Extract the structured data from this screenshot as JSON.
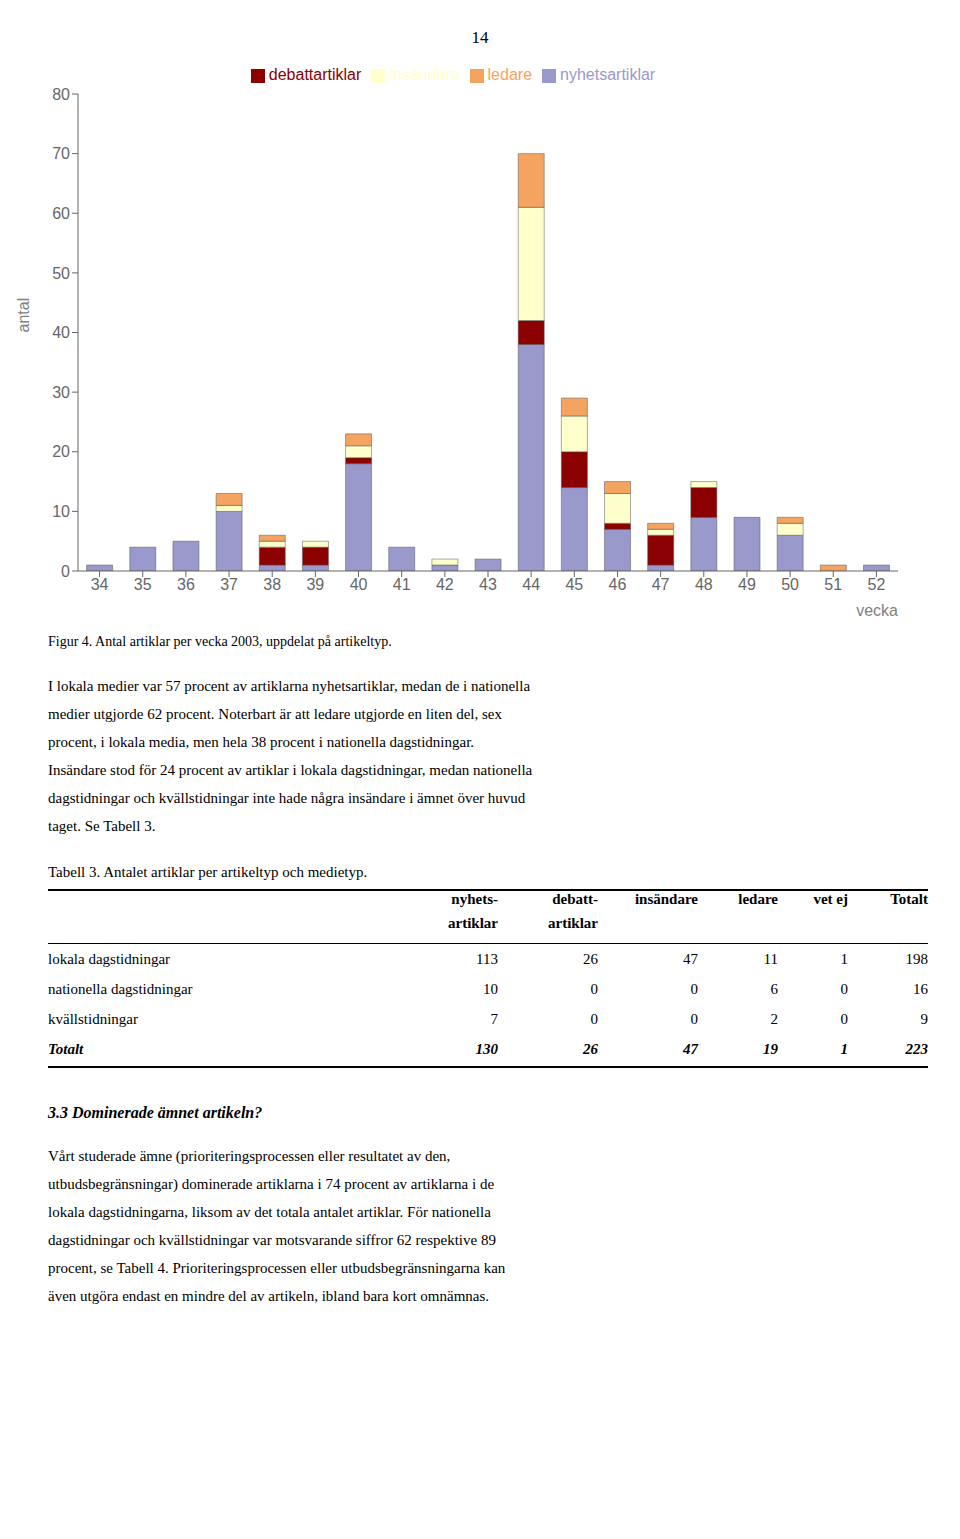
{
  "chart_data": {
    "type": "bar",
    "stacked": true,
    "grid": false,
    "legend": "top",
    "x_label": "vecka",
    "y_label": "antal",
    "categories": [
      "34",
      "35",
      "36",
      "37",
      "38",
      "39",
      "40",
      "41",
      "42",
      "43",
      "44",
      "45",
      "46",
      "47",
      "48",
      "49",
      "50",
      "51",
      "52"
    ],
    "series": [
      {
        "name": "nyhetsartiklar",
        "color": "#9999cc",
        "values": [
          1,
          4,
          5,
          10,
          1,
          1,
          18,
          4,
          1,
          2,
          38,
          14,
          7,
          1,
          9,
          9,
          6,
          0,
          1
        ]
      },
      {
        "name": "debattartiklar",
        "color": "#8b0000",
        "values": [
          0,
          0,
          0,
          0,
          3,
          3,
          1,
          0,
          0,
          0,
          4,
          6,
          1,
          5,
          5,
          0,
          0,
          0,
          0
        ]
      },
      {
        "name": "insändare",
        "color": "#ffffcc",
        "values": [
          0,
          0,
          0,
          1,
          1,
          1,
          2,
          0,
          1,
          0,
          19,
          6,
          5,
          1,
          1,
          0,
          2,
          0,
          0
        ]
      },
      {
        "name": "ledare",
        "color": "#f4a460",
        "values": [
          0,
          0,
          0,
          2,
          1,
          0,
          2,
          0,
          0,
          0,
          9,
          3,
          2,
          1,
          0,
          0,
          1,
          1,
          0
        ]
      }
    ],
    "ylim": [
      0,
      80
    ],
    "yticks": [
      0,
      10,
      20,
      30,
      40,
      50,
      60,
      70,
      80
    ]
  },
  "page_number": "14",
  "figure_caption": "Figur 4. Antal artiklar per vecka 2003, uppdelat på artikeltyp.",
  "paragraph1_lines": [
    "I lokala medier var 57 procent av artiklarna nyhetsartiklar, medan de i nationella",
    "medier utgjorde 62 procent. Noterbart är att ledare utgjorde en liten del, sex",
    "procent, i lokala media, men hela 38 procent i nationella dagstidningar.",
    "Insändare stod för 24 procent av artiklar i lokala dagstidningar, medan nationella",
    "dagstidningar och kvällstidningar inte hade några insändare i ämnet över huvud",
    "taget. Se Tabell 3."
  ],
  "table": {
    "title": "Tabell 3. Antalet artiklar per artikeltyp och medietyp.",
    "header": [
      [
        null,
        "nyhets-",
        "debatt-",
        "insändare",
        "ledare",
        "vet ej",
        "Totalt"
      ],
      [
        null,
        "artiklar",
        "artiklar",
        null,
        null,
        null,
        null
      ]
    ],
    "rows": [
      [
        "lokala dagstidningar",
        "113",
        "26",
        "47",
        "11",
        "1",
        "198"
      ],
      [
        "nationella dagstidningar",
        "10",
        "0",
        "0",
        "6",
        "0",
        "16"
      ],
      [
        "kvällstidningar",
        "7",
        "0",
        "0",
        "2",
        "0",
        "9"
      ],
      [
        "Totalt",
        "130",
        "26",
        "47",
        "19",
        "1",
        "223"
      ]
    ]
  },
  "section_heading": "3.3 Dominerade ämnet artikeln?",
  "paragraph2_lines": [
    "Vårt studerade ämne (prioriteringsprocessen eller resultatet av den,",
    "utbudsbegränsningar) dominerade artiklarna i 74 procent av artiklarna i de",
    "lokala dagstidningarna, liksom av det totala antalet artiklar. För nationella",
    "dagstidningar och kvällstidningar var motsvarande siffror 62 respektive 89",
    "procent, se Tabell 4. Prioriteringsprocessen eller utbudsbegränsningarna kan",
    "även utgöra endast en mindre del av artikeln, ibland bara kort omnämnas."
  ]
}
